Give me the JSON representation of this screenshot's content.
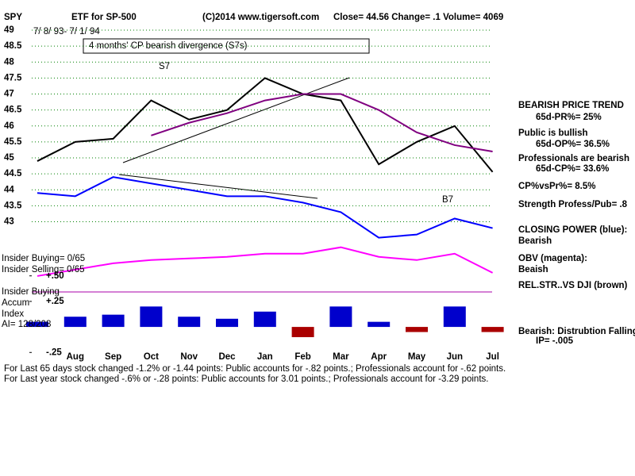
{
  "chart_data": [
    {
      "type": "line",
      "header": [
        "SPY",
        "ETF for SP-500",
        "(C)2014 www.tigersoft.com",
        "Close= 44.56  Change= .1  Volume= 4069"
      ],
      "subtitle": "7/ 8/ 93- 7/ 1/ 94",
      "annotations": [
        "4 months' CP bearish divergence (S7s)",
        "S7",
        "B7"
      ],
      "categories": [
        null,
        "Aug",
        "Sep",
        "Oct",
        "Nov",
        "Dec",
        "Jan",
        "Feb",
        "Mar",
        "Apr",
        "May",
        "Jun",
        "Jul"
      ],
      "series": [
        {
          "color": "#000000",
          "values": [
            44.9,
            45.5,
            45.6,
            46.8,
            46.2,
            46.5,
            47.5,
            47.0,
            46.8,
            44.8,
            45.5,
            46.0,
            44.56
          ]
        },
        {
          "color": "#800080",
          "values": [
            null,
            null,
            null,
            45.7,
            46.1,
            46.4,
            46.8,
            47.0,
            47.0,
            46.5,
            45.8,
            45.4,
            45.2
          ]
        },
        {
          "color": "#0000ff",
          "values": [
            43.9,
            43.8,
            44.4,
            44.2,
            44.0,
            43.8,
            43.8,
            43.6,
            43.3,
            42.5,
            42.6,
            43.1,
            42.8
          ]
        },
        {
          "color": "#ff00ff",
          "values": [
            41.3,
            41.5,
            41.7,
            41.8,
            41.85,
            41.9,
            42.0,
            42.0,
            42.2,
            41.9,
            41.8,
            42.0,
            41.4
          ]
        }
      ],
      "ylim": [
        41,
        49.2
      ],
      "yticks": [
        43,
        43.5,
        44,
        44.5,
        45,
        45.5,
        46,
        46.5,
        47,
        47.5,
        48,
        48.5,
        49
      ],
      "grid": true,
      "sidebar": [
        "BEARISH PRICE TREND",
        "65d-PR%= 25%",
        "Public is bullish",
        "65d-OP%= 36.5%",
        "Professionals are bearish",
        "65d-CP%= 33.6%",
        "CP%vsPr%=  8.5%",
        "Strength Profess/Pub= .8",
        "CLOSING POWER (blue):",
        "Bearish",
        "OBV (magenta):",
        "Beaish",
        "REL.STR..VS DJI (brown)",
        "Bearish: Distrubtion Falling",
        "IP= -.005"
      ],
      "footer": [
        "For Last 65 days stock changed -1.2% or -1.44 points:  Public accounts for -.82 points.;  Professionals account for -.62 points.",
        "For Last year stock changed -.6% or -.28 points:  Public accounts for  3.01 points.;  Professionals account for -3.29 points."
      ]
    },
    {
      "type": "bar",
      "annotations": [
        "Insider Buying= 0/65",
        "Insider Selling= 0/65",
        "Insider Buying",
        "Accum",
        "Index",
        "AI= 128/208"
      ],
      "values": [
        0.05,
        0.1,
        0.12,
        0.2,
        0.1,
        0.08,
        0.15,
        -0.1,
        0.2,
        0.05,
        -0.05,
        0.2,
        -0.05
      ],
      "positive_color": "#0000cc",
      "negative_color": "#aa0000",
      "ylim": [
        -0.31,
        0.56
      ],
      "yticks": [
        {
          "value": 0.5,
          "label": "+.50"
        },
        {
          "value": 0.25,
          "label": "+.25"
        },
        {
          "value": -0.25,
          "label": "-.25"
        }
      ]
    }
  ]
}
